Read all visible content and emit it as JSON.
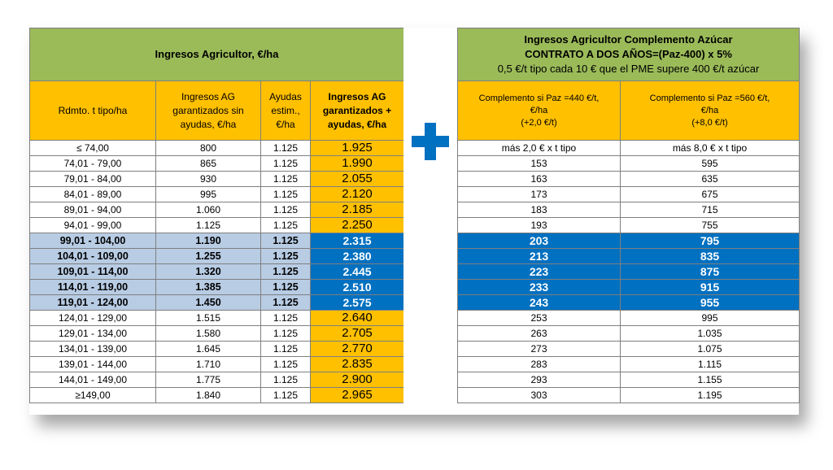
{
  "left": {
    "title": "Ingresos Agricultor, €/ha",
    "headers": [
      "Rdmto. t tipo/ha",
      "Ingresos AG garantizados sin ayudas, €/ha",
      "Ayudas estim., €/ha",
      "Ingresos AG garantizados + ayudas, €/ha"
    ],
    "rows": [
      [
        "≤ 74,00",
        "800",
        "1.125",
        "1.925"
      ],
      [
        "74,01 - 79,00",
        "865",
        "1.125",
        "1.990"
      ],
      [
        "79,01 - 84,00",
        "930",
        "1.125",
        "2.055"
      ],
      [
        "84,01 - 89,00",
        "995",
        "1.125",
        "2.120"
      ],
      [
        "89,01 - 94,00",
        "1.060",
        "1.125",
        "2.185"
      ],
      [
        "94,01 - 99,00",
        "1.125",
        "1.125",
        "2.250"
      ],
      [
        "99,01 - 104,00",
        "1.190",
        "1.125",
        "2.315"
      ],
      [
        "104,01 - 109,00",
        "1.255",
        "1.125",
        "2.380"
      ],
      [
        "109,01 - 114,00",
        "1.320",
        "1.125",
        "2.445"
      ],
      [
        "114,01 - 119,00",
        "1.385",
        "1.125",
        "2.510"
      ],
      [
        "119,01 - 124,00",
        "1.450",
        "1.125",
        "2.575"
      ],
      [
        "124,01 - 129,00",
        "1.515",
        "1.125",
        "2.640"
      ],
      [
        "129,01 - 134,00",
        "1.580",
        "1.125",
        "2.705"
      ],
      [
        "134,01 - 139,00",
        "1.645",
        "1.125",
        "2.770"
      ],
      [
        "139,01 - 144,00",
        "1.710",
        "1.125",
        "2.835"
      ],
      [
        "144,01 - 149,00",
        "1.775",
        "1.125",
        "2.900"
      ],
      [
        "≥149,00",
        "1.840",
        "1.125",
        "2.965"
      ]
    ]
  },
  "right": {
    "title_line1": "Ingresos Agricultor Complemento Azúcar",
    "title_line2": "CONTRATO A DOS AÑOS=(Paz-400) x 5%",
    "title_line3": "0,5 €/t tipo cada 10 € que el PME supere 400 €/t azúcar",
    "headers": [
      {
        "l1": "Complemento si Paz =440 €/t,",
        "l2": "€/ha",
        "l3": "(+2,0 €/t)"
      },
      {
        "l1": "Complemento si Paz =560 €/t,",
        "l2": "€/ha",
        "l3": "(+8,0 €/t)"
      }
    ],
    "rows": [
      [
        "más 2,0 € x t tipo",
        "más 8,0 € x t tipo"
      ],
      [
        "153",
        "595"
      ],
      [
        "163",
        "635"
      ],
      [
        "173",
        "675"
      ],
      [
        "183",
        "715"
      ],
      [
        "193",
        "755"
      ],
      [
        "203",
        "795"
      ],
      [
        "213",
        "835"
      ],
      [
        "223",
        "875"
      ],
      [
        "233",
        "915"
      ],
      [
        "243",
        "955"
      ],
      [
        "253",
        "995"
      ],
      [
        "263",
        "1.035"
      ],
      [
        "273",
        "1.075"
      ],
      [
        "283",
        "1.115"
      ],
      [
        "293",
        "1.155"
      ],
      [
        "303",
        "1.195"
      ]
    ]
  },
  "highlight_rows": [
    6,
    7,
    8,
    9,
    10
  ],
  "icons": {
    "plus": "plus-icon"
  },
  "colors": {
    "green": "#9bbb59",
    "gold": "#ffc000",
    "blue": "#0070c0",
    "light_blue": "#b8cce4"
  }
}
